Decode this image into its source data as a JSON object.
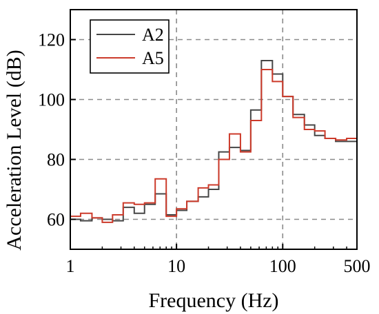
{
  "chart_data": {
    "type": "line",
    "step": true,
    "x_scale": "log",
    "xlabel": "Frequency (Hz)",
    "ylabel": "Acceleration Level (dB)",
    "xlim": [
      1,
      500
    ],
    "ylim": [
      50,
      130
    ],
    "x_ticks": [
      1,
      10,
      100,
      500
    ],
    "x_tick_labels": [
      "1",
      "10",
      "100",
      "500"
    ],
    "y_ticks": [
      60,
      80,
      100,
      120
    ],
    "y_tick_labels": [
      "60",
      "80",
      "100",
      "120"
    ],
    "grid": "dashed, at major ticks",
    "legend_position": "top-left",
    "x": [
      1,
      1.25,
      1.6,
      2,
      2.5,
      3.15,
      4,
      5,
      6.3,
      8,
      10,
      12.5,
      16,
      20,
      25,
      31.5,
      40,
      50,
      63,
      80,
      100,
      125,
      160,
      200,
      250,
      315,
      400,
      500
    ],
    "series": [
      {
        "name": "A2",
        "color": "#454545",
        "values": [
          60.0,
          59.5,
          60.5,
          60.0,
          59.5,
          64.0,
          62.0,
          65.0,
          68.5,
          61.5,
          63.0,
          66.0,
          67.5,
          70.0,
          82.5,
          84.0,
          83.0,
          96.5,
          113.0,
          108.5,
          101.0,
          95.0,
          91.5,
          88.0,
          87.0,
          86.0,
          86.0,
          86.0
        ]
      },
      {
        "name": "A5",
        "color": "#cc3a2a",
        "values": [
          61.0,
          62.0,
          60.5,
          59.0,
          61.5,
          65.5,
          65.0,
          65.5,
          73.5,
          61.0,
          63.5,
          66.0,
          70.5,
          71.5,
          80.0,
          88.5,
          82.5,
          93.0,
          110.0,
          106.0,
          101.0,
          94.0,
          90.0,
          89.5,
          87.0,
          86.5,
          87.0,
          87.0
        ]
      }
    ]
  }
}
